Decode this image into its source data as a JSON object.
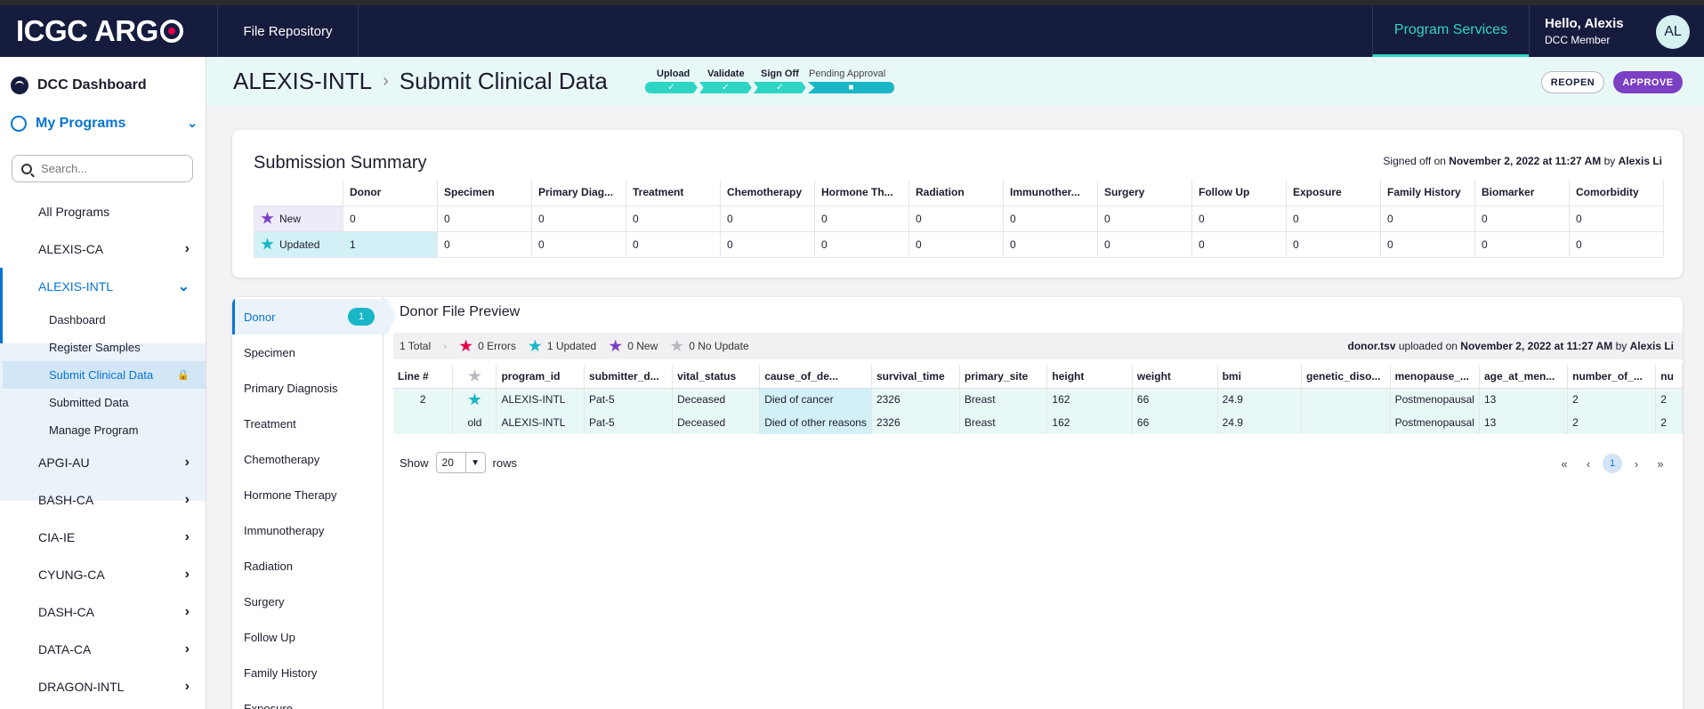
{
  "topnav": {
    "logo": "ICGC ARG",
    "file_repository": "File Repository",
    "program_services": "Program Services",
    "greeting": "Hello, Alexis",
    "role": "DCC Member",
    "avatar_initials": "AL"
  },
  "sidebar": {
    "dcc_dashboard": "DCC Dashboard",
    "my_programs": "My Programs",
    "search_placeholder": "Search...",
    "all_programs": "All Programs",
    "programs": [
      "ALEXIS-CA",
      "ALEXIS-INTL",
      "APGI-AU",
      "BASH-CA",
      "CIA-IE",
      "CYUNG-CA",
      "DASH-CA",
      "DATA-CA",
      "DRAGON-INTL"
    ],
    "sub_items": [
      "Dashboard",
      "Register Samples",
      "Submit Clinical Data",
      "Submitted Data",
      "Manage Program"
    ]
  },
  "header": {
    "program": "ALEXIS-INTL",
    "page": "Submit Clinical Data",
    "steps": [
      "Upload",
      "Validate",
      "Sign Off",
      "Pending Approval"
    ],
    "reopen": "REOPEN",
    "approve": "APPROVE"
  },
  "summary": {
    "title": "Submission Summary",
    "signed_prefix": "Signed off on",
    "signed_date": "November 2, 2022 at 11:27 AM",
    "signed_by_prefix": "by",
    "signed_by": "Alexis Li",
    "columns": [
      "Donor",
      "Specimen",
      "Primary Diag...",
      "Treatment",
      "Chemotherapy",
      "Hormone Th...",
      "Radiation",
      "Immunother...",
      "Surgery",
      "Follow Up",
      "Exposure",
      "Family History",
      "Biomarker",
      "Comorbidity"
    ],
    "rows": [
      {
        "label": "New",
        "values": [
          "0",
          "0",
          "0",
          "0",
          "0",
          "0",
          "0",
          "0",
          "0",
          "0",
          "0",
          "0",
          "0",
          "0"
        ]
      },
      {
        "label": "Updated",
        "values": [
          "1",
          "0",
          "0",
          "0",
          "0",
          "0",
          "0",
          "0",
          "0",
          "0",
          "0",
          "0",
          "0",
          "0"
        ]
      }
    ]
  },
  "preview": {
    "tabs": [
      "Donor",
      "Specimen",
      "Primary Diagnosis",
      "Treatment",
      "Chemotherapy",
      "Hormone Therapy",
      "Immunotherapy",
      "Radiation",
      "Surgery",
      "Follow Up",
      "Family History",
      "Exposure"
    ],
    "donor_badge": "1",
    "title": "Donor File Preview",
    "total": "1 Total",
    "errors": "0 Errors",
    "updated": "1 Updated",
    "new": "0 New",
    "no_update": "0 No Update",
    "file_name": "donor.tsv",
    "uploaded_on": "uploaded on",
    "uploaded_date": "November 2, 2022 at 11:27 AM",
    "uploaded_by_prefix": "by",
    "uploaded_by": "Alexis Li",
    "columns": [
      "Line #",
      "",
      "program_id",
      "submitter_d...",
      "vital_status",
      "cause_of_de...",
      "survival_time",
      "primary_site",
      "height",
      "weight",
      "bmi",
      "genetic_diso...",
      "menopause_...",
      "age_at_men...",
      "number_of_...",
      "nu"
    ],
    "rows": [
      [
        "2",
        "",
        "ALEXIS-INTL",
        "Pat-5",
        "Deceased",
        "Died of cancer",
        "2326",
        "Breast",
        "162",
        "66",
        "24.9",
        "",
        "Postmenopausal",
        "13",
        "2",
        "2"
      ],
      [
        "",
        "old",
        "ALEXIS-INTL",
        "Pat-5",
        "Deceased",
        "Died of other reasons",
        "2326",
        "Breast",
        "162",
        "66",
        "24.9",
        "",
        "Postmenopausal",
        "13",
        "2",
        "2"
      ]
    ],
    "show_label": "Show",
    "page_size": "20",
    "rows_label": "rows",
    "current_page": "1"
  },
  "colors": {
    "nav_bg": "#151c3d",
    "accent_teal": "#2fd5c4",
    "primary_blue": "#0774d3",
    "approve_purple": "#7b40c3",
    "updated_teal": "#19b6c7",
    "error_red": "#e2004b"
  }
}
